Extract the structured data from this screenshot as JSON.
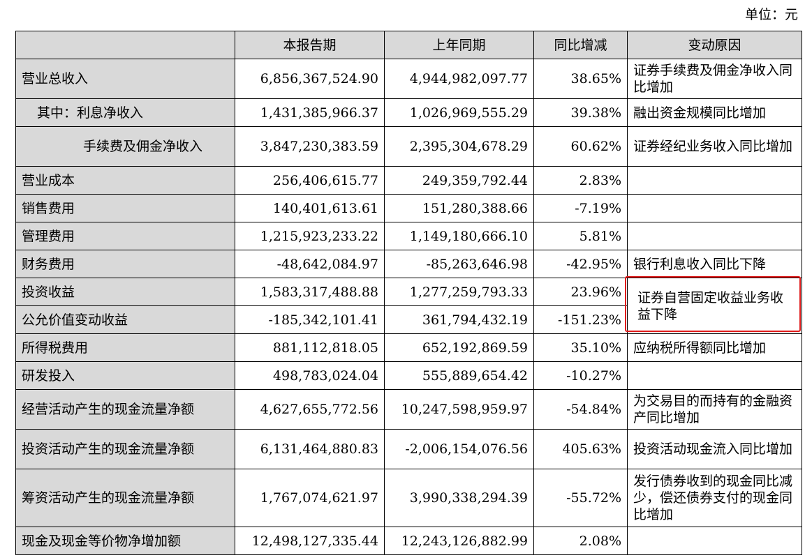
{
  "unit_label": "单位：元",
  "headers": [
    "",
    "本报告期",
    "上年同期",
    "同比增减",
    "变动原因"
  ],
  "rows": [
    {
      "item": "营业总收入",
      "current": "6,856,367,524.90",
      "prior": "4,944,982,097.77",
      "change": "38.65%",
      "reason": "证券手续费及佣金净收入同比增加"
    },
    {
      "item": "其中：利息净收入",
      "current": "1,431,385,966.37",
      "prior": "1,026,969,555.29",
      "change": "39.38%",
      "reason": "融出资金规模同比增加"
    },
    {
      "item": "手续费及佣金净收入",
      "current": "3,847,230,383.59",
      "prior": "2,395,304,678.29",
      "change": "60.62%",
      "reason": "证券经纪业务收入同比增加"
    },
    {
      "item": "营业成本",
      "current": "256,406,615.77",
      "prior": "249,359,792.44",
      "change": "2.83%",
      "reason": ""
    },
    {
      "item": "销售费用",
      "current": "140,401,613.61",
      "prior": "151,280,388.66",
      "change": "-7.19%",
      "reason": ""
    },
    {
      "item": "管理费用",
      "current": "1,215,923,233.22",
      "prior": "1,149,180,666.10",
      "change": "5.81%",
      "reason": ""
    },
    {
      "item": "财务费用",
      "current": "-48,642,084.97",
      "prior": "-85,263,646.98",
      "change": "-42.95%",
      "reason": "银行利息收入同比下降"
    },
    {
      "item": "投资收益",
      "current": "1,583,317,488.88",
      "prior": "1,277,259,793.33",
      "change": "23.96%",
      "reason": "证券自营固定收益业务收益下降"
    },
    {
      "item": "公允价值变动收益",
      "current": "-185,342,101.41",
      "prior": "361,794,432.19",
      "change": "-151.23%",
      "reason": ""
    },
    {
      "item": "所得税费用",
      "current": "881,112,818.05",
      "prior": "652,192,869.59",
      "change": "35.10%",
      "reason": "应纳税所得额同比增加"
    },
    {
      "item": "研发投入",
      "current": "498,783,024.04",
      "prior": "555,889,654.42",
      "change": "-10.27%",
      "reason": ""
    },
    {
      "item": "经营活动产生的现金流量净额",
      "current": "4,627,655,772.56",
      "prior": "10,247,598,959.97",
      "change": "-54.84%",
      "reason": "为交易目的而持有的金融资产同比增加"
    },
    {
      "item": "投资活动产生的现金流量净额",
      "current": "6,131,464,880.83",
      "prior": "-2,006,154,076.56",
      "change": "405.63%",
      "reason": "投资活动现金流入同比增加"
    },
    {
      "item": "筹资活动产生的现金流量净额",
      "current": "1,767,074,621.97",
      "prior": "3,990,338,294.39",
      "change": "-55.72%",
      "reason": "发行债券收到的现金同比减少，偿还债券支付的现金同比增加"
    },
    {
      "item": "现金及现金等价物净增加额",
      "current": "12,498,127,335.44",
      "prior": "12,243,126,882.99",
      "change": "2.08%",
      "reason": ""
    }
  ]
}
